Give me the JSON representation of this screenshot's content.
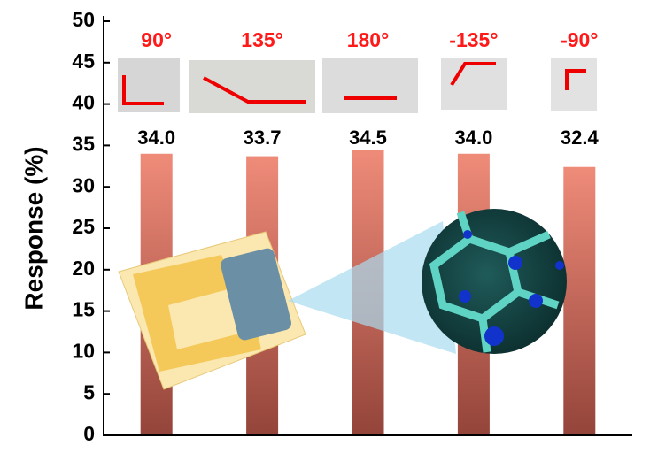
{
  "chart_data": {
    "type": "bar",
    "categories": [
      "90°",
      "135°",
      "180°",
      "-135°",
      "-90°"
    ],
    "values": [
      34.0,
      33.7,
      34.5,
      34.0,
      32.4
    ],
    "value_labels": [
      "34.0",
      "33.7",
      "34.5",
      "34.0",
      "32.4"
    ],
    "color": "#ef8b79",
    "category_color": "#ff1a1a",
    "y_label": "Response (%)",
    "ylim": [
      0,
      50
    ],
    "yticks": [
      0,
      5,
      10,
      15,
      20,
      25,
      30,
      35,
      40,
      45,
      50
    ]
  }
}
